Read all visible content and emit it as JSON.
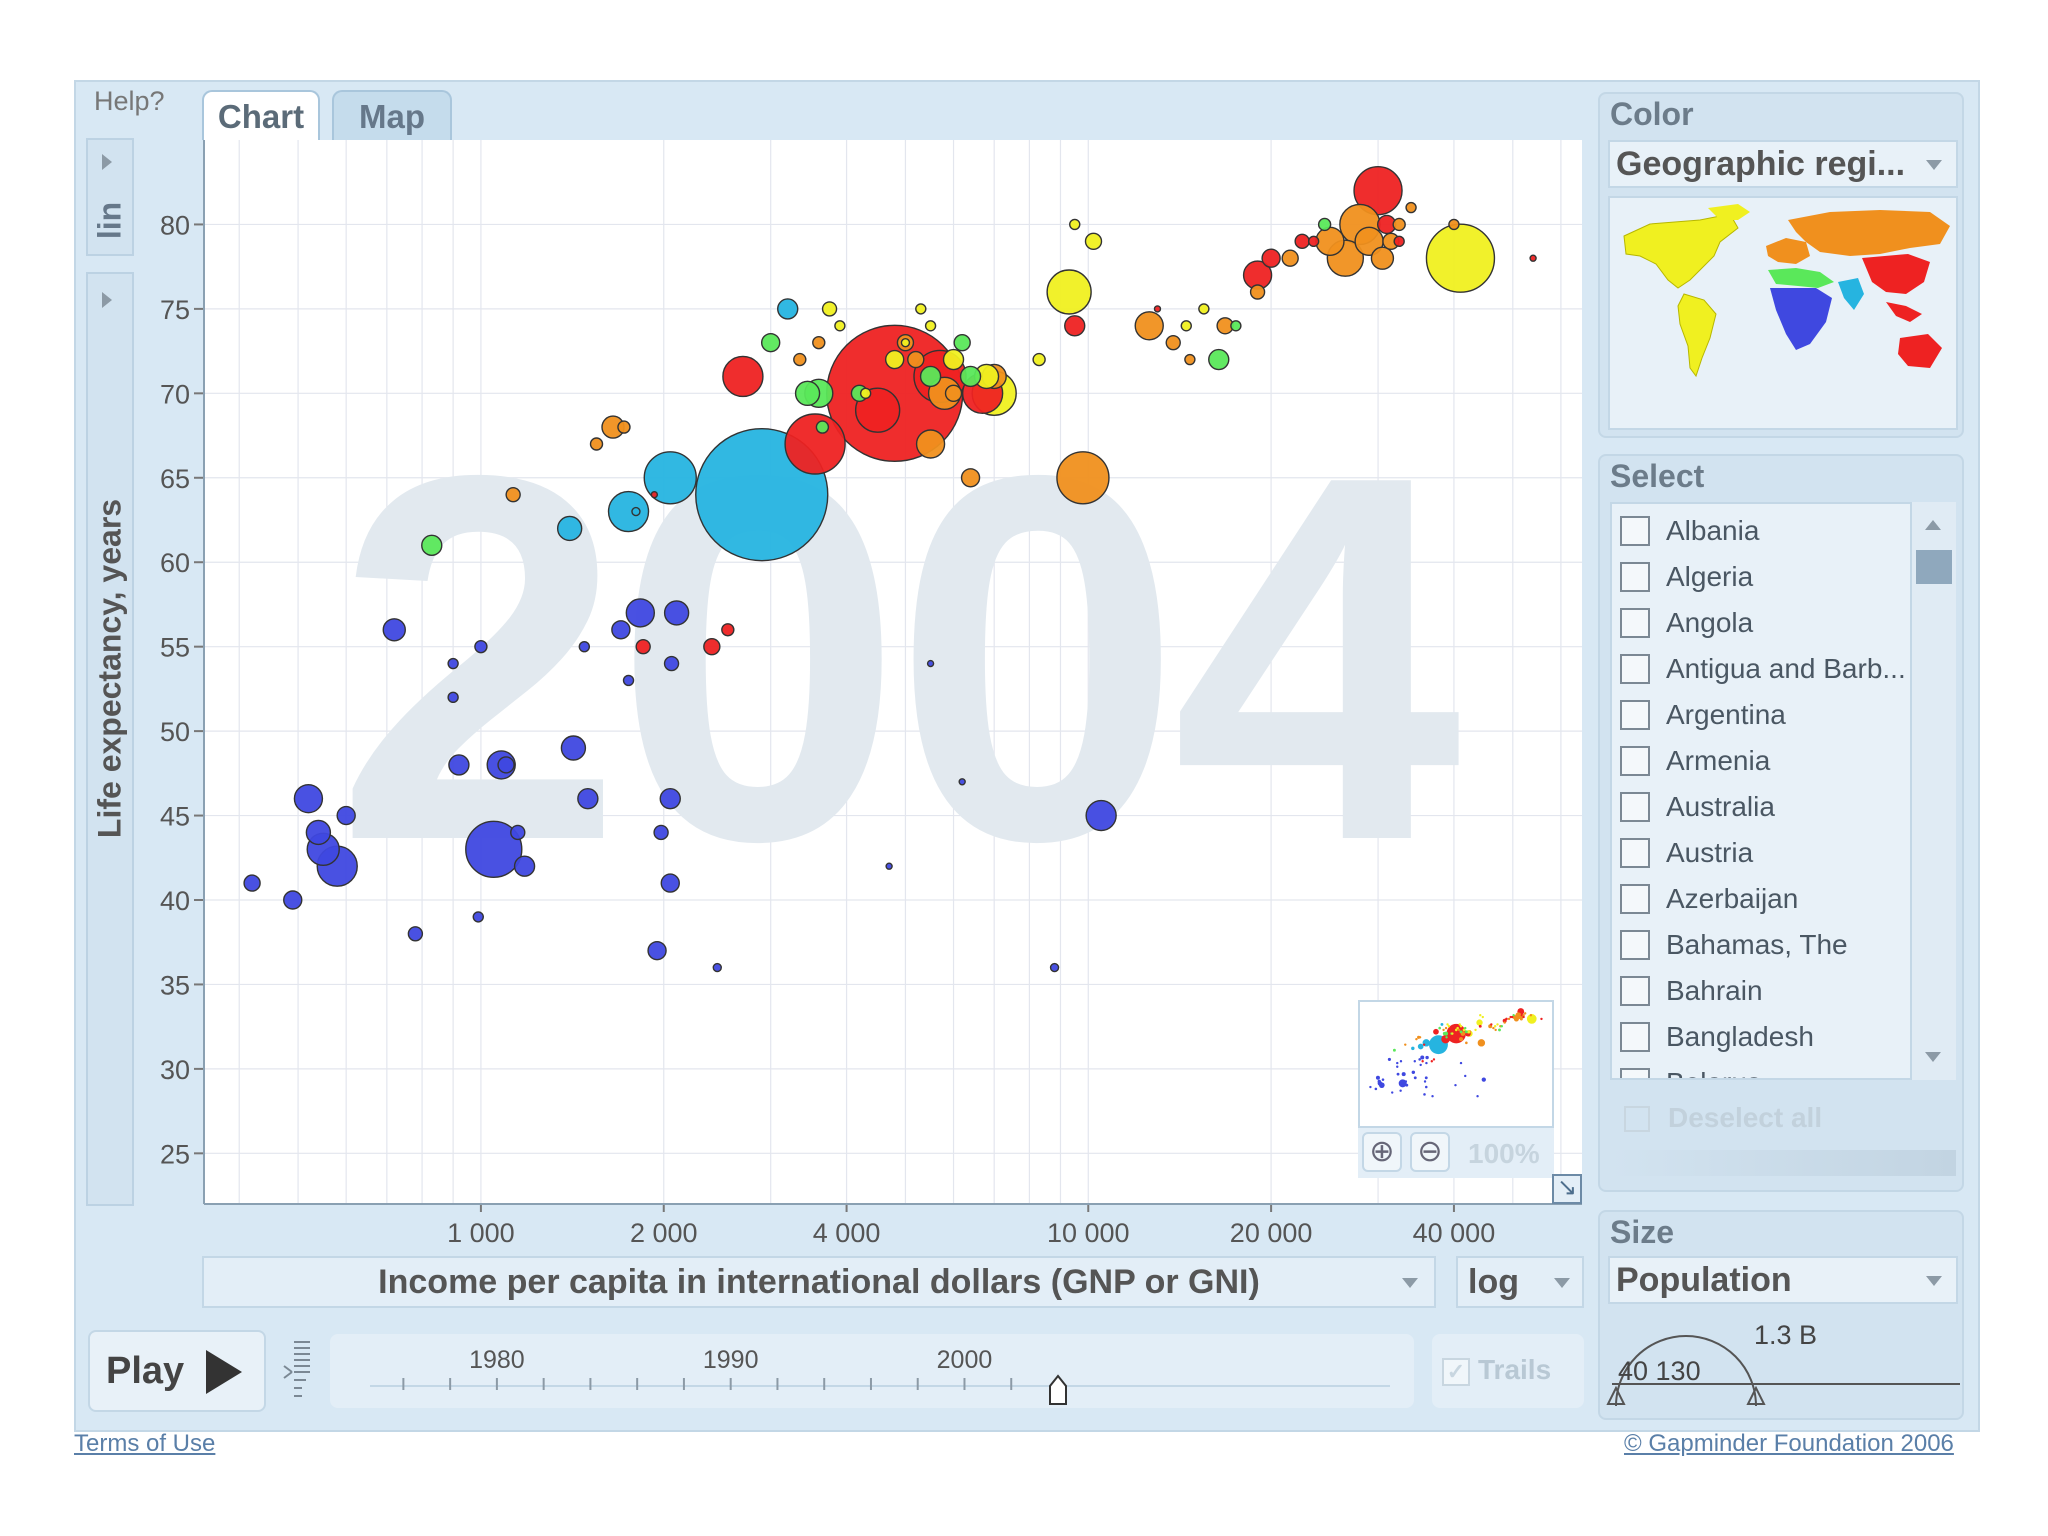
{
  "header": {
    "help": "Help?",
    "tabs": [
      {
        "label": "Chart"
      },
      {
        "label": "Map"
      }
    ]
  },
  "y_axis_scale": "lin",
  "x_axis_title_selector": "Income per capita in international dollars (GNP or GNI)",
  "x_axis_scale_selector": "log",
  "year_watermark": "2004",
  "zoom": {
    "level": "100%"
  },
  "color_panel": {
    "title": "Color",
    "selected": "Geographic regi..."
  },
  "select_panel": {
    "title": "Select",
    "countries": [
      "Albania",
      "Algeria",
      "Angola",
      "Antigua and Barb...",
      "Argentina",
      "Armenia",
      "Australia",
      "Austria",
      "Azerbaijan",
      "Bahamas, The",
      "Bahrain",
      "Bangladesh",
      "Belarus"
    ],
    "deselect_all": "Deselect all"
  },
  "size_panel": {
    "title": "Size",
    "selected": "Population",
    "min_label": "40 130",
    "max_label": "1.3 B"
  },
  "play": {
    "label": "Play",
    "trails": "Trails",
    "year_ticks": [
      "1980",
      "1990",
      "2000"
    ],
    "current_year": 2004
  },
  "footer": {
    "terms": "Terms of Use",
    "copyright": "© Gapminder Foundation 2006"
  },
  "colors": {
    "panel": "#d8e8f4",
    "grid": "#e3e6ee",
    "watermark": "#e2e9ef",
    "sub_saharan_africa": "#3f48e0",
    "south_asia": "#26b4e0",
    "east_asia_pacific": "#ee2222",
    "europe_central_asia": "#f0901e",
    "americas": "#f0f020",
    "middle_east_north_africa": "#5ae85a"
  },
  "chart_data": {
    "type": "scatter",
    "title": "",
    "xlabel": "Income per capita in international dollars (GNP or GNI)",
    "ylabel": "Life expectancy, years",
    "x_scale": "log",
    "xlim": [
      350,
      65000
    ],
    "ylim": [
      22,
      85
    ],
    "x_ticks": [
      1000,
      2000,
      4000,
      10000,
      20000,
      40000
    ],
    "x_tick_labels": [
      "1 000",
      "2 000",
      "4 000",
      "10 000",
      "20 000",
      "40 000"
    ],
    "y_ticks": [
      25,
      30,
      35,
      40,
      45,
      50,
      55,
      60,
      65,
      70,
      75,
      80
    ],
    "grid": true,
    "size_encoding": "population",
    "color_encoding": "geographic region",
    "series": [
      {
        "region": "sub_saharan_africa",
        "points": [
          [
            420,
            41,
            8
          ],
          [
            490,
            40,
            9
          ],
          [
            520,
            46,
            14
          ],
          [
            540,
            44,
            12
          ],
          [
            550,
            43,
            16
          ],
          [
            580,
            42,
            20
          ],
          [
            600,
            45,
            9
          ],
          [
            720,
            56,
            11
          ],
          [
            780,
            38,
            7
          ],
          [
            900,
            54,
            5
          ],
          [
            900,
            52,
            5
          ],
          [
            920,
            48,
            10
          ],
          [
            990,
            39,
            5
          ],
          [
            1000,
            55,
            6
          ],
          [
            1050,
            43,
            28
          ],
          [
            1080,
            48,
            14
          ],
          [
            1100,
            48,
            8
          ],
          [
            1150,
            44,
            7
          ],
          [
            1180,
            42,
            10
          ],
          [
            1420,
            49,
            12
          ],
          [
            1480,
            55,
            5
          ],
          [
            1500,
            46,
            10
          ],
          [
            1700,
            56,
            9
          ],
          [
            1750,
            53,
            5
          ],
          [
            1830,
            57,
            14
          ],
          [
            1950,
            37,
            9
          ],
          [
            1980,
            44,
            7
          ],
          [
            2050,
            41,
            9
          ],
          [
            2050,
            46,
            10
          ],
          [
            2060,
            54,
            7
          ],
          [
            2100,
            57,
            12
          ],
          [
            2450,
            36,
            4
          ],
          [
            5500,
            54,
            3
          ],
          [
            6200,
            47,
            3
          ],
          [
            8800,
            36,
            4
          ],
          [
            10500,
            45,
            15
          ],
          [
            4700,
            42,
            3
          ]
        ]
      },
      {
        "region": "south_asia",
        "points": [
          [
            1400,
            62,
            12
          ],
          [
            1750,
            63,
            20
          ],
          [
            1800,
            63,
            4
          ],
          [
            2050,
            65,
            26
          ],
          [
            2900,
            64,
            66
          ],
          [
            3200,
            75,
            10
          ]
        ]
      },
      {
        "region": "east_asia_pacific",
        "points": [
          [
            1850,
            55,
            7
          ],
          [
            1930,
            64,
            3
          ],
          [
            2400,
            55,
            8
          ],
          [
            2550,
            56,
            6
          ],
          [
            2700,
            71,
            20
          ],
          [
            3550,
            67,
            30
          ],
          [
            4500,
            69,
            22
          ],
          [
            4800,
            70,
            68
          ],
          [
            5700,
            71,
            26
          ],
          [
            6700,
            70,
            20
          ],
          [
            9500,
            74,
            10
          ],
          [
            13000,
            75,
            3
          ],
          [
            19000,
            77,
            14
          ],
          [
            20000,
            78,
            9
          ],
          [
            22500,
            79,
            7
          ],
          [
            23500,
            79,
            5
          ],
          [
            30000,
            82,
            24
          ],
          [
            31000,
            80,
            9
          ],
          [
            32500,
            79,
            5
          ],
          [
            54000,
            78,
            3
          ]
        ]
      },
      {
        "region": "europe_central_asia",
        "points": [
          [
            1130,
            64,
            7
          ],
          [
            1550,
            67,
            6
          ],
          [
            1650,
            68,
            11
          ],
          [
            1720,
            68,
            6
          ],
          [
            3350,
            72,
            6
          ],
          [
            3600,
            73,
            6
          ],
          [
            5000,
            73,
            8
          ],
          [
            5200,
            72,
            8
          ],
          [
            5500,
            67,
            14
          ],
          [
            5800,
            70,
            16
          ],
          [
            6000,
            70,
            8
          ],
          [
            6400,
            65,
            9
          ],
          [
            7000,
            71,
            12
          ],
          [
            9800,
            65,
            26
          ],
          [
            12600,
            74,
            14
          ],
          [
            13800,
            73,
            7
          ],
          [
            14700,
            72,
            5
          ],
          [
            16800,
            74,
            8
          ],
          [
            19000,
            76,
            7
          ],
          [
            21500,
            78,
            8
          ],
          [
            25000,
            79,
            14
          ],
          [
            26500,
            78,
            18
          ],
          [
            28000,
            80,
            20
          ],
          [
            29000,
            79,
            14
          ],
          [
            30500,
            78,
            11
          ],
          [
            31500,
            79,
            8
          ],
          [
            32500,
            80,
            6
          ],
          [
            34000,
            81,
            5
          ],
          [
            40000,
            80,
            5
          ]
        ]
      },
      {
        "region": "americas",
        "points": [
          [
            3750,
            75,
            7
          ],
          [
            3900,
            74,
            5
          ],
          [
            4300,
            70,
            5
          ],
          [
            4800,
            72,
            9
          ],
          [
            5000,
            73,
            4
          ],
          [
            5300,
            75,
            5
          ],
          [
            5500,
            74,
            5
          ],
          [
            6000,
            72,
            10
          ],
          [
            6800,
            71,
            12
          ],
          [
            7000,
            70,
            22
          ],
          [
            8300,
            72,
            6
          ],
          [
            9300,
            76,
            22
          ],
          [
            9500,
            80,
            5
          ],
          [
            10200,
            79,
            8
          ],
          [
            14500,
            74,
            5
          ],
          [
            15500,
            75,
            5
          ],
          [
            41000,
            78,
            34
          ]
        ]
      },
      {
        "region": "middle_east_north_africa",
        "points": [
          [
            830,
            61,
            10
          ],
          [
            3000,
            73,
            9
          ],
          [
            3450,
            70,
            12
          ],
          [
            3600,
            70,
            14
          ],
          [
            3650,
            68,
            6
          ],
          [
            4200,
            70,
            8
          ],
          [
            5500,
            71,
            10
          ],
          [
            6200,
            73,
            8
          ],
          [
            6400,
            71,
            10
          ],
          [
            16400,
            72,
            10
          ],
          [
            17500,
            74,
            5
          ],
          [
            24500,
            80,
            6
          ]
        ]
      }
    ]
  }
}
